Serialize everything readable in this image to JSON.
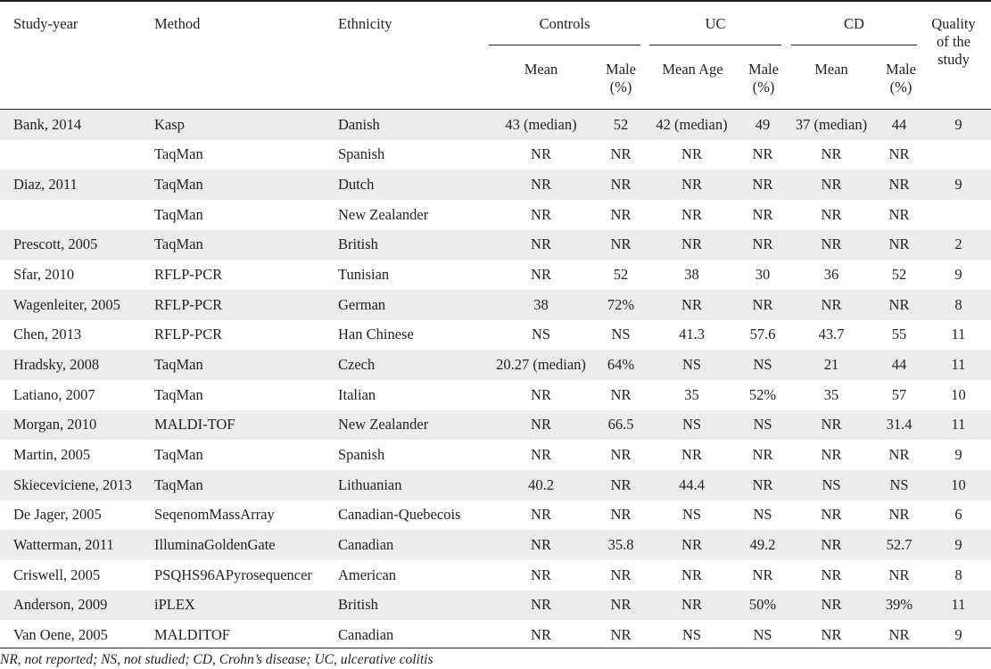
{
  "header": {
    "study_year": "Study-year",
    "method": "Method",
    "ethnicity": "Ethnicity",
    "controls": "Controls",
    "uc": "UC",
    "cd": "CD",
    "quality": [
      "Quality",
      "of the",
      "study"
    ],
    "mean": "Mean",
    "mean_age": "Mean Age",
    "male": [
      "Male",
      "(%)"
    ]
  },
  "rows": [
    [
      "Bank, 2014",
      "Kasp",
      "Danish",
      "43 (median)",
      "52",
      "42 (median)",
      "49",
      "37 (median)",
      "44",
      "9"
    ],
    [
      "",
      "TaqMan",
      "Spanish",
      "NR",
      "NR",
      "NR",
      "NR",
      "NR",
      "NR",
      ""
    ],
    [
      "Diaz, 2011",
      "TaqMan",
      "Dutch",
      "NR",
      "NR",
      "NR",
      "NR",
      "NR",
      "NR",
      "9"
    ],
    [
      "",
      "TaqMan",
      "New Zealander",
      "NR",
      "NR",
      "NR",
      "NR",
      "NR",
      "NR",
      ""
    ],
    [
      "Prescott, 2005",
      "TaqMan",
      "British",
      "NR",
      "NR",
      "NR",
      "NR",
      "NR",
      "NR",
      "2"
    ],
    [
      "Sfar, 2010",
      "RFLP-PCR",
      "Tunisian",
      "NR",
      "52",
      "38",
      "30",
      "36",
      "52",
      "9"
    ],
    [
      "Wagenleiter, 2005",
      "RFLP-PCR",
      "German",
      "38",
      "72%",
      "NR",
      "NR",
      "NR",
      "NR",
      "8"
    ],
    [
      "Chen, 2013",
      "RFLP-PCR",
      "Han Chinese",
      "NS",
      "NS",
      "41.3",
      "57.6",
      "43.7",
      "55",
      "11"
    ],
    [
      "Hradsky, 2008",
      "TaqMan",
      "Czech",
      "20.27 (median)",
      "64%",
      "NS",
      "NS",
      "21",
      "44",
      "11"
    ],
    [
      "Latiano, 2007",
      "TaqMan",
      "Italian",
      "NR",
      "NR",
      "35",
      "52%",
      "35",
      "57",
      "10"
    ],
    [
      "Morgan, 2010",
      "MALDI-TOF",
      "New Zealander",
      "NR",
      "66.5",
      "NS",
      "NS",
      "NR",
      "31.4",
      "11"
    ],
    [
      "Martin, 2005",
      "TaqMan",
      "Spanish",
      "NR",
      "NR",
      "NR",
      "NR",
      "NR",
      "NR",
      "9"
    ],
    [
      "Skieceviciene, 2013",
      "TaqMan",
      "Lithuanian",
      "40.2",
      "NR",
      "44.4",
      "NR",
      "NS",
      "NS",
      "10"
    ],
    [
      "De Jager, 2005",
      "SeqenomMassArray",
      "Canadian-Quebecois",
      "NR",
      "NR",
      "NS",
      "NS",
      "NR",
      "NR",
      "6"
    ],
    [
      "Watterman, 2011",
      "IlluminaGoldenGate",
      "Canadian",
      "NR",
      "35.8",
      "NR",
      "49.2",
      "NR",
      "52.7",
      "9"
    ],
    [
      "Criswell, 2005",
      "PSQHS96APyrosequencer",
      "American",
      "NR",
      "NR",
      "NR",
      "NR",
      "NR",
      "NR",
      "8"
    ],
    [
      "Anderson, 2009",
      "iPLEX",
      "British",
      "NR",
      "NR",
      "NR",
      "50%",
      "NR",
      "39%",
      "11"
    ],
    [
      "Van Oene, 2005",
      "MALDITOF",
      "Canadian",
      "NR",
      "NR",
      "NS",
      "NS",
      "NR",
      "NR",
      "9"
    ]
  ],
  "footnote": "NR, not reported; NS, not studied; CD, Crohn’s disease; UC, ulcerative colitis"
}
